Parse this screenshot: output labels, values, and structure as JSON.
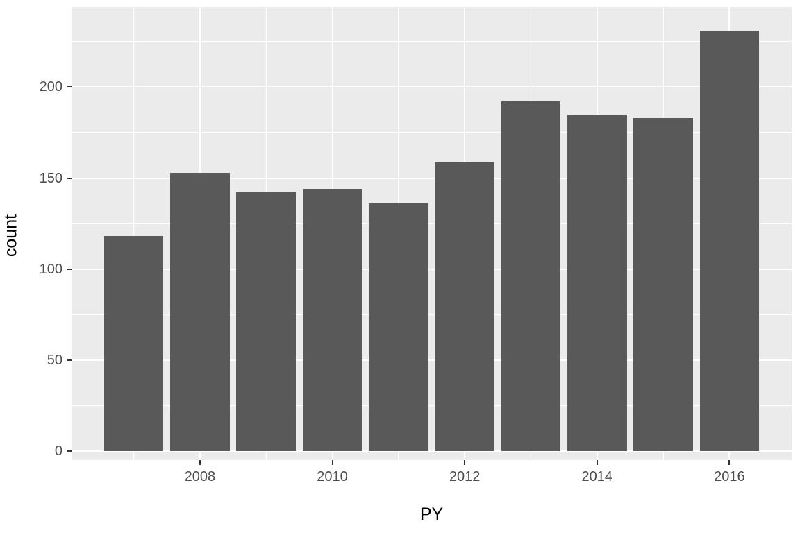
{
  "chart_data": {
    "type": "bar",
    "title": "",
    "xlabel": "PY",
    "ylabel": "count",
    "x": [
      2007,
      2008,
      2009,
      2010,
      2011,
      2012,
      2013,
      2014,
      2015,
      2016
    ],
    "values": [
      118,
      153,
      142,
      144,
      136,
      159,
      192,
      185,
      183,
      231
    ],
    "x_major_ticks": [
      2008,
      2010,
      2012,
      2014,
      2016
    ],
    "x_minor_gridlines": [
      2007,
      2009,
      2011,
      2013,
      2015
    ],
    "y_major_ticks": [
      0,
      50,
      100,
      150,
      200
    ],
    "y_minor_gridlines": [
      25,
      75,
      125,
      175,
      225
    ],
    "xlim": [
      2006.06,
      2016.94
    ],
    "ylim": [
      -5,
      244
    ],
    "bar_width_units": 0.9,
    "grid": "on",
    "legend": "none",
    "colors": {
      "bar_fill": "#595959",
      "panel_background": "#EBEBEB",
      "gridline": "#ffffff",
      "tick_text": "#4D4D4D",
      "axis_title_text": "#000000",
      "figure_background": "#ffffff",
      "tick_mark": "#333333"
    }
  }
}
